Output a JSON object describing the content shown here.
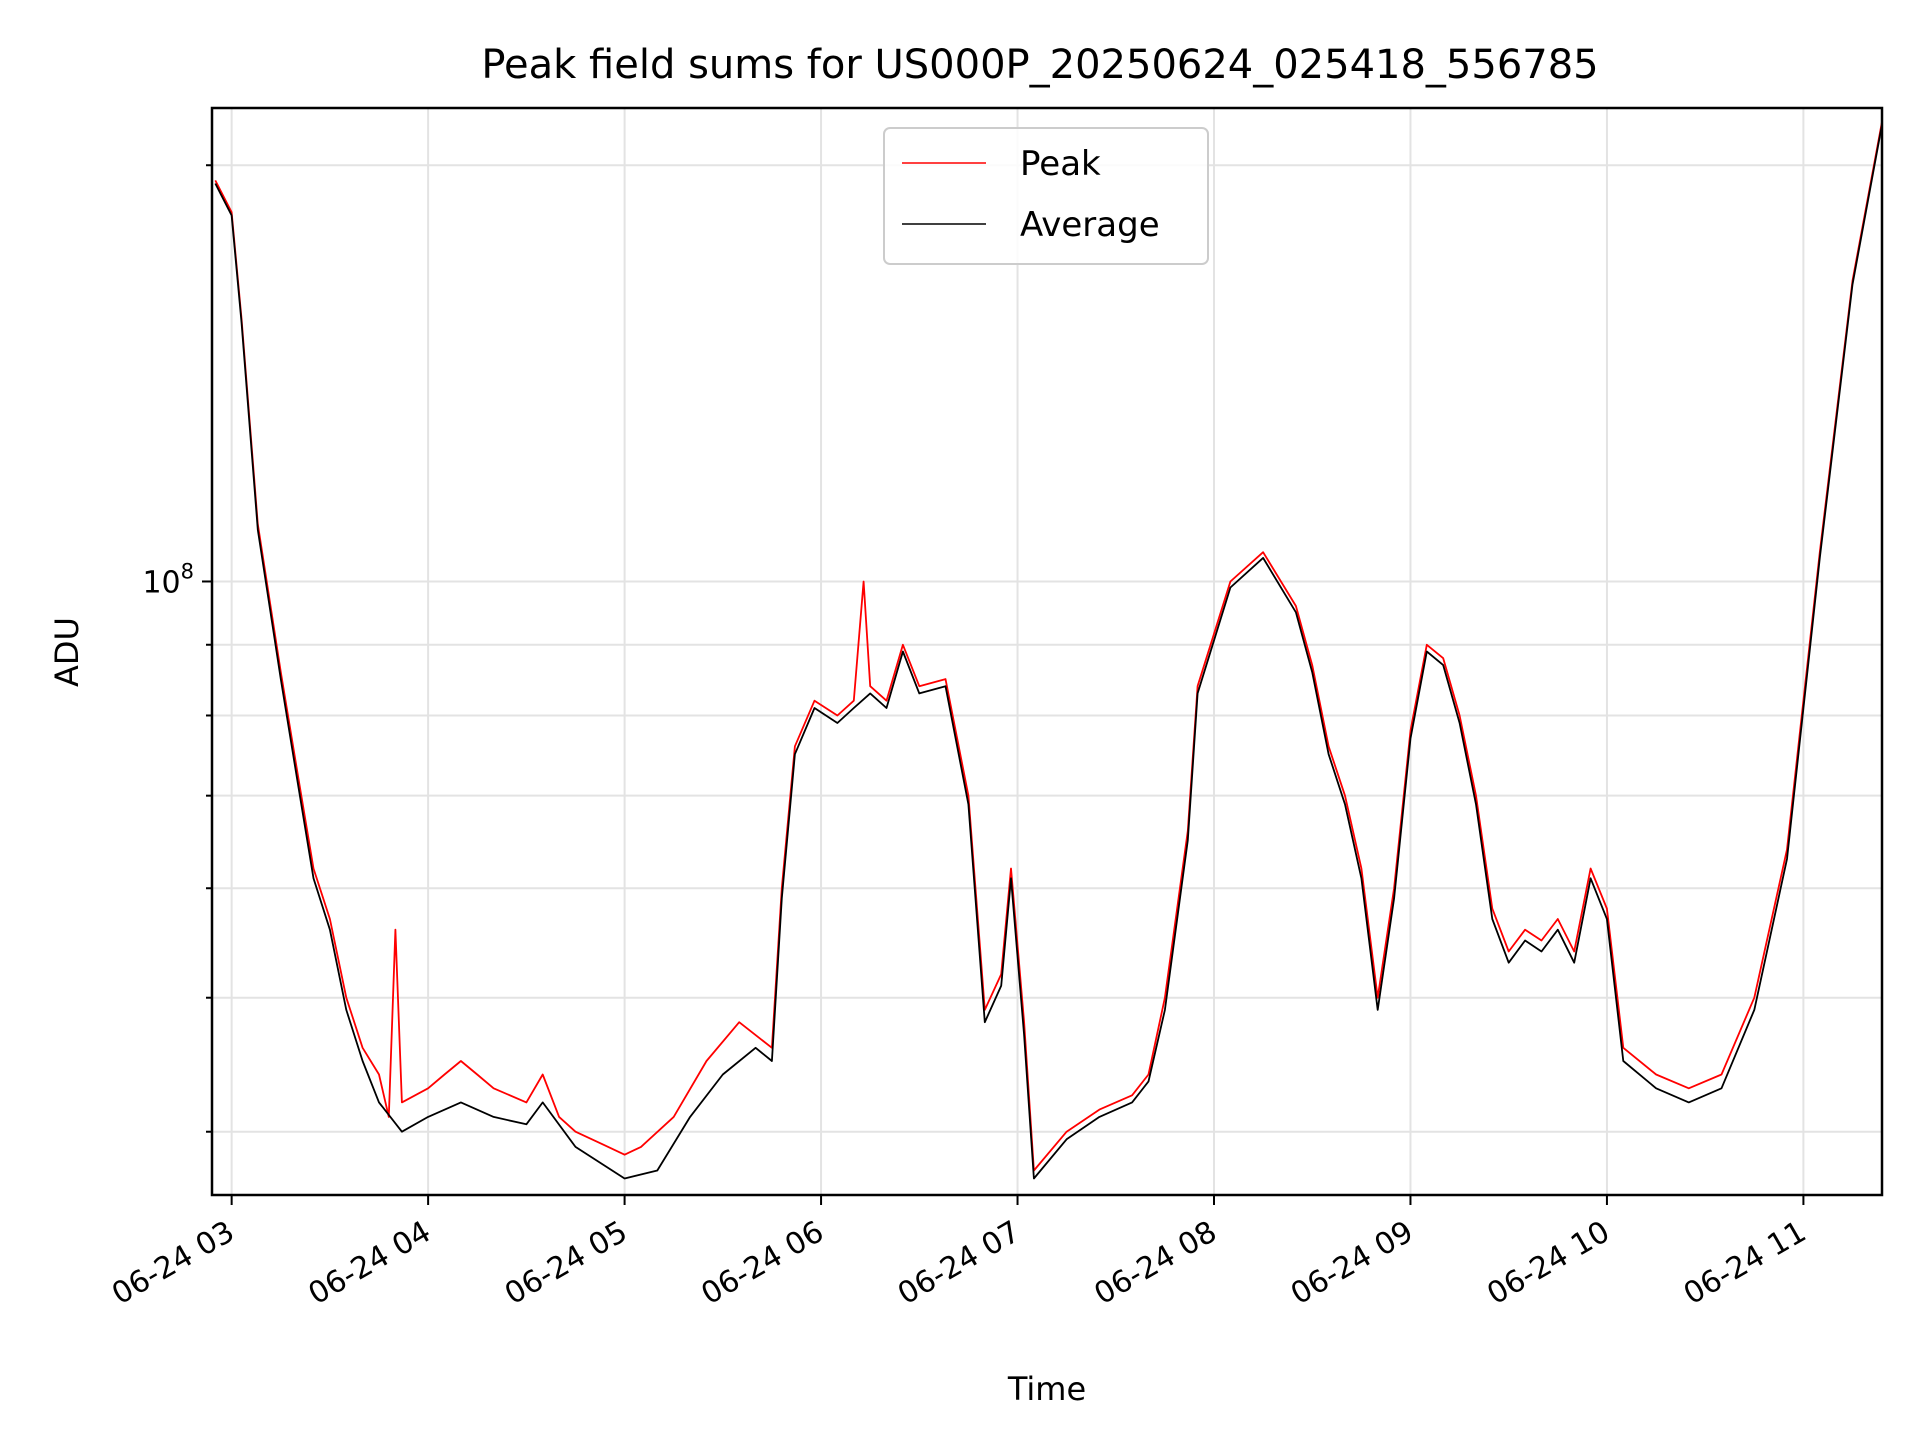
{
  "chart_data": {
    "type": "line",
    "title": "Peak field sums for US000P_20250624_025418_556785",
    "xlabel": "Time",
    "ylabel": "ADU",
    "y_scale": "log",
    "grid": true,
    "legend_position": "top-center",
    "x_range": [
      "06-24 02:54",
      "06-24 11:24"
    ],
    "y_range": [
      36000000,
      220000000
    ],
    "x_ticks": [
      "06-24 03",
      "06-24 04",
      "06-24 05",
      "06-24 06",
      "06-24 07",
      "06-24 08",
      "06-24 09",
      "06-24 10",
      "06-24 11"
    ],
    "y_ticks": [
      {
        "label": "10",
        "exp": "8",
        "value": 100000000
      }
    ],
    "series": [
      {
        "name": "Peak",
        "color": "#ff0000",
        "points": [
          [
            "06-24 02:55",
            195000000
          ],
          [
            "06-24 03:00",
            185000000
          ],
          [
            "06-24 03:03",
            155000000
          ],
          [
            "06-24 03:08",
            110000000
          ],
          [
            "06-24 03:15",
            86000000
          ],
          [
            "06-24 03:20",
            73000000
          ],
          [
            "06-24 03:25",
            62000000
          ],
          [
            "06-24 03:30",
            57000000
          ],
          [
            "06-24 03:35",
            50000000
          ],
          [
            "06-24 03:40",
            46000000
          ],
          [
            "06-24 03:45",
            44000000
          ],
          [
            "06-24 03:48",
            41000000
          ],
          [
            "06-24 03:50",
            56000000
          ],
          [
            "06-24 03:52",
            42000000
          ],
          [
            "06-24 04:00",
            43000000
          ],
          [
            "06-24 04:05",
            44000000
          ],
          [
            "06-24 04:10",
            45000000
          ],
          [
            "06-24 04:15",
            44000000
          ],
          [
            "06-24 04:20",
            43000000
          ],
          [
            "06-24 04:30",
            42000000
          ],
          [
            "06-24 04:35",
            44000000
          ],
          [
            "06-24 04:40",
            41000000
          ],
          [
            "06-24 04:45",
            40000000
          ],
          [
            "06-24 04:55",
            39000000
          ],
          [
            "06-24 05:00",
            38500000
          ],
          [
            "06-24 05:05",
            39000000
          ],
          [
            "06-24 05:15",
            41000000
          ],
          [
            "06-24 05:25",
            45000000
          ],
          [
            "06-24 05:35",
            48000000
          ],
          [
            "06-24 05:45",
            46000000
          ],
          [
            "06-24 05:48",
            60000000
          ],
          [
            "06-24 05:52",
            76000000
          ],
          [
            "06-24 05:58",
            82000000
          ],
          [
            "06-24 06:05",
            80000000
          ],
          [
            "06-24 06:10",
            82000000
          ],
          [
            "06-24 06:13",
            100000000
          ],
          [
            "06-24 06:15",
            84000000
          ],
          [
            "06-24 06:20",
            82000000
          ],
          [
            "06-24 06:25",
            90000000
          ],
          [
            "06-24 06:30",
            84000000
          ],
          [
            "06-24 06:38",
            85000000
          ],
          [
            "06-24 06:45",
            70000000
          ],
          [
            "06-24 06:50",
            49000000
          ],
          [
            "06-24 06:55",
            52000000
          ],
          [
            "06-24 06:58",
            62000000
          ],
          [
            "06-24 07:02",
            48000000
          ],
          [
            "06-24 07:05",
            37500000
          ],
          [
            "06-24 07:15",
            40000000
          ],
          [
            "06-24 07:25",
            41500000
          ],
          [
            "06-24 07:35",
            42500000
          ],
          [
            "06-24 07:40",
            44000000
          ],
          [
            "06-24 07:45",
            50000000
          ],
          [
            "06-24 07:52",
            66000000
          ],
          [
            "06-24 07:55",
            84000000
          ],
          [
            "06-24 08:05",
            100000000
          ],
          [
            "06-24 08:15",
            105000000
          ],
          [
            "06-24 08:25",
            96000000
          ],
          [
            "06-24 08:30",
            87000000
          ],
          [
            "06-24 08:35",
            76000000
          ],
          [
            "06-24 08:40",
            70000000
          ],
          [
            "06-24 08:45",
            62000000
          ],
          [
            "06-24 08:50",
            50000000
          ],
          [
            "06-24 08:55",
            60000000
          ],
          [
            "06-24 09:00",
            78000000
          ],
          [
            "06-24 09:05",
            90000000
          ],
          [
            "06-24 09:10",
            88000000
          ],
          [
            "06-24 09:15",
            80000000
          ],
          [
            "06-24 09:20",
            70000000
          ],
          [
            "06-24 09:25",
            58000000
          ],
          [
            "06-24 09:30",
            54000000
          ],
          [
            "06-24 09:35",
            56000000
          ],
          [
            "06-24 09:40",
            55000000
          ],
          [
            "06-24 09:45",
            57000000
          ],
          [
            "06-24 09:50",
            54000000
          ],
          [
            "06-24 09:55",
            62000000
          ],
          [
            "06-24 10:00",
            58000000
          ],
          [
            "06-24 10:05",
            46000000
          ],
          [
            "06-24 10:15",
            44000000
          ],
          [
            "06-24 10:25",
            43000000
          ],
          [
            "06-24 10:35",
            44000000
          ],
          [
            "06-24 10:45",
            50000000
          ],
          [
            "06-24 10:55",
            64000000
          ],
          [
            "06-24 11:05",
            105000000
          ],
          [
            "06-24 11:15",
            165000000
          ],
          [
            "06-24 11:24",
            215000000
          ]
        ]
      },
      {
        "name": "Average",
        "color": "#000000",
        "points": [
          [
            "06-24 02:55",
            194000000
          ],
          [
            "06-24 03:00",
            184000000
          ],
          [
            "06-24 03:03",
            154000000
          ],
          [
            "06-24 03:08",
            109000000
          ],
          [
            "06-24 03:15",
            85000000
          ],
          [
            "06-24 03:20",
            72000000
          ],
          [
            "06-24 03:25",
            61000000
          ],
          [
            "06-24 03:30",
            56000000
          ],
          [
            "06-24 03:35",
            49000000
          ],
          [
            "06-24 03:40",
            45000000
          ],
          [
            "06-24 03:45",
            42000000
          ],
          [
            "06-24 03:52",
            40000000
          ],
          [
            "06-24 04:00",
            41000000
          ],
          [
            "06-24 04:10",
            42000000
          ],
          [
            "06-24 04:20",
            41000000
          ],
          [
            "06-24 04:30",
            40500000
          ],
          [
            "06-24 04:35",
            42000000
          ],
          [
            "06-24 04:45",
            39000000
          ],
          [
            "06-24 05:00",
            37000000
          ],
          [
            "06-24 05:10",
            37500000
          ],
          [
            "06-24 05:20",
            41000000
          ],
          [
            "06-24 05:30",
            44000000
          ],
          [
            "06-24 05:40",
            46000000
          ],
          [
            "06-24 05:45",
            45000000
          ],
          [
            "06-24 05:48",
            59000000
          ],
          [
            "06-24 05:52",
            75000000
          ],
          [
            "06-24 05:58",
            81000000
          ],
          [
            "06-24 06:05",
            79000000
          ],
          [
            "06-24 06:10",
            81000000
          ],
          [
            "06-24 06:15",
            83000000
          ],
          [
            "06-24 06:20",
            81000000
          ],
          [
            "06-24 06:25",
            89000000
          ],
          [
            "06-24 06:30",
            83000000
          ],
          [
            "06-24 06:38",
            84000000
          ],
          [
            "06-24 06:45",
            69000000
          ],
          [
            "06-24 06:50",
            48000000
          ],
          [
            "06-24 06:55",
            51000000
          ],
          [
            "06-24 06:58",
            61000000
          ],
          [
            "06-24 07:02",
            47000000
          ],
          [
            "06-24 07:05",
            37000000
          ],
          [
            "06-24 07:15",
            39500000
          ],
          [
            "06-24 07:25",
            41000000
          ],
          [
            "06-24 07:35",
            42000000
          ],
          [
            "06-24 07:40",
            43500000
          ],
          [
            "06-24 07:45",
            49000000
          ],
          [
            "06-24 07:52",
            65000000
          ],
          [
            "06-24 07:55",
            83000000
          ],
          [
            "06-24 08:05",
            99000000
          ],
          [
            "06-24 08:15",
            104000000
          ],
          [
            "06-24 08:25",
            95000000
          ],
          [
            "06-24 08:30",
            86000000
          ],
          [
            "06-24 08:35",
            75000000
          ],
          [
            "06-24 08:40",
            69000000
          ],
          [
            "06-24 08:45",
            61000000
          ],
          [
            "06-24 08:50",
            49000000
          ],
          [
            "06-24 08:55",
            59000000
          ],
          [
            "06-24 09:00",
            77000000
          ],
          [
            "06-24 09:05",
            89000000
          ],
          [
            "06-24 09:10",
            87000000
          ],
          [
            "06-24 09:15",
            79000000
          ],
          [
            "06-24 09:20",
            69000000
          ],
          [
            "06-24 09:25",
            57000000
          ],
          [
            "06-24 09:30",
            53000000
          ],
          [
            "06-24 09:35",
            55000000
          ],
          [
            "06-24 09:40",
            54000000
          ],
          [
            "06-24 09:45",
            56000000
          ],
          [
            "06-24 09:50",
            53000000
          ],
          [
            "06-24 09:55",
            61000000
          ],
          [
            "06-24 10:00",
            57000000
          ],
          [
            "06-24 10:05",
            45000000
          ],
          [
            "06-24 10:15",
            43000000
          ],
          [
            "06-24 10:25",
            42000000
          ],
          [
            "06-24 10:35",
            43000000
          ],
          [
            "06-24 10:45",
            49000000
          ],
          [
            "06-24 10:55",
            63000000
          ],
          [
            "06-24 11:05",
            104000000
          ],
          [
            "06-24 11:15",
            164000000
          ],
          [
            "06-24 11:24",
            214000000
          ]
        ]
      }
    ]
  }
}
